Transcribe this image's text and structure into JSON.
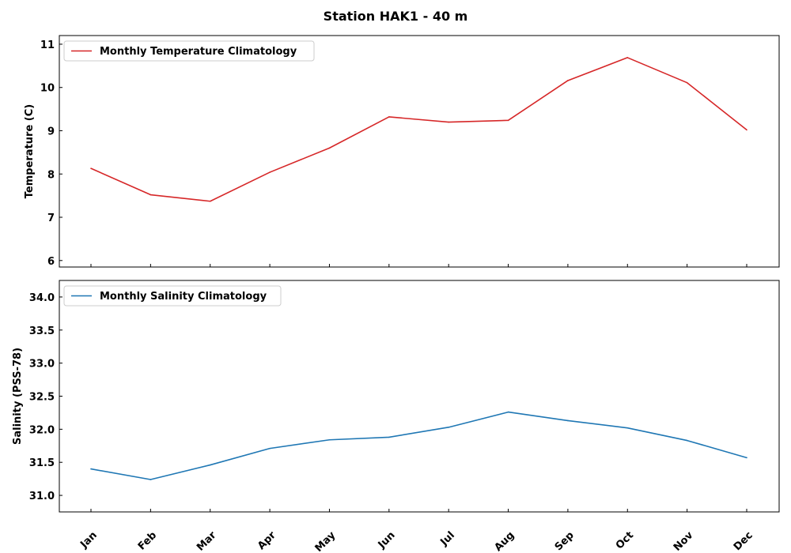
{
  "chart_data": {
    "title": "Station HAK1 - 40 m",
    "categories": [
      "Jan",
      "Feb",
      "Mar",
      "Apr",
      "May",
      "Jun",
      "Jul",
      "Aug",
      "Sep",
      "Oct",
      "Nov",
      "Dec"
    ],
    "panels": [
      {
        "type": "line",
        "ylabel": "Temperature (C)",
        "ylim": [
          5.85,
          11.2
        ],
        "yticks": [
          6,
          7,
          8,
          9,
          10,
          11
        ],
        "tick_decimals": 0,
        "series": [
          {
            "name": "Monthly Temperature Climatology",
            "color": "#d62728",
            "values": [
              8.13,
              7.52,
              7.37,
              8.04,
              8.6,
              9.32,
              9.2,
              9.24,
              10.16,
              10.69,
              10.11,
              9.02
            ]
          }
        ],
        "legend": "top-left"
      },
      {
        "type": "line",
        "ylabel": "Salinity (PSS-78)",
        "ylim": [
          30.75,
          34.25
        ],
        "yticks": [
          31.0,
          31.5,
          32.0,
          32.5,
          33.0,
          33.5,
          34.0
        ],
        "tick_decimals": 1,
        "series": [
          {
            "name": "Monthly Salinity Climatology",
            "color": "#1f77b4",
            "values": [
              31.4,
              31.24,
              31.46,
              31.71,
              31.84,
              31.88,
              32.03,
              32.26,
              32.13,
              32.02,
              31.83,
              31.57
            ]
          }
        ],
        "legend": "top-left"
      }
    ],
    "grid": false
  }
}
